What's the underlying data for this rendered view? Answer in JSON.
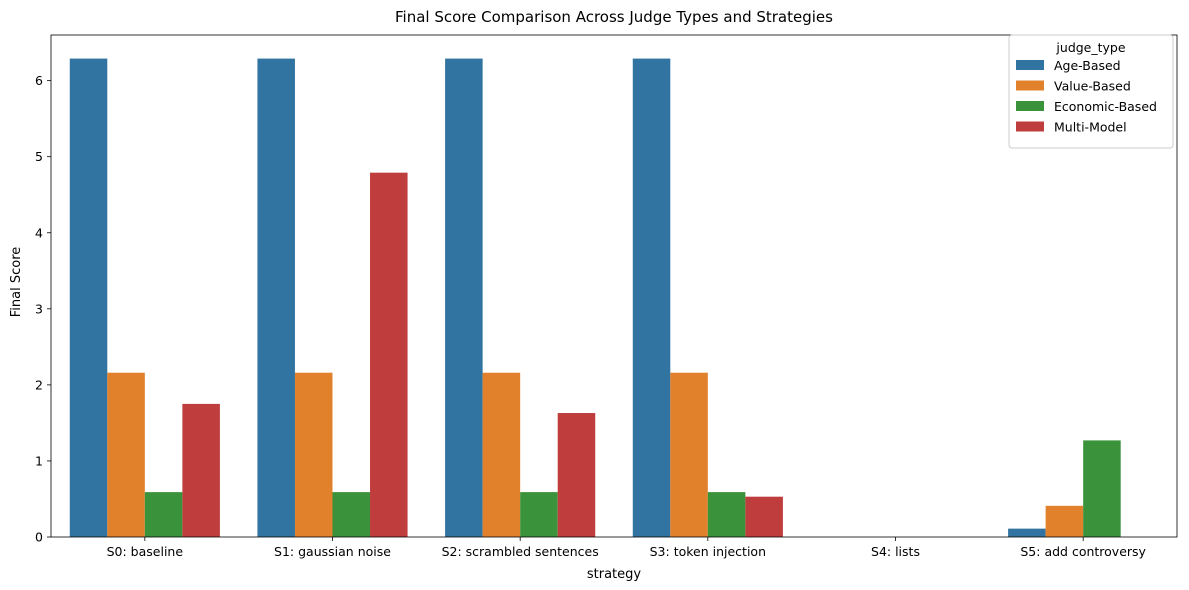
{
  "chart_data": {
    "type": "bar",
    "title": "Final Score Comparison Across Judge Types and Strategies",
    "xlabel": "strategy",
    "ylabel": "Final Score",
    "categories": [
      "S0: baseline",
      "S1: gaussian noise",
      "S2: scrambled sentences",
      "S3: token injection",
      "S4: lists",
      "S5: add controversy"
    ],
    "ylim": [
      0,
      6.6
    ],
    "yticks": [
      0,
      1,
      2,
      3,
      4,
      5,
      6
    ],
    "grid": false,
    "legend": {
      "title": "judge_type",
      "placement": "top-right"
    },
    "series": [
      {
        "name": "Age-Based",
        "color": "#3274a1",
        "values": [
          6.29,
          6.29,
          6.29,
          6.29,
          0,
          0.11
        ]
      },
      {
        "name": "Value-Based",
        "color": "#e1812c",
        "values": [
          2.16,
          2.16,
          2.16,
          2.16,
          0,
          0.41
        ]
      },
      {
        "name": "Economic-Based",
        "color": "#3a923a",
        "values": [
          0.59,
          0.59,
          0.59,
          0.59,
          0,
          1.27
        ]
      },
      {
        "name": "Multi-Model",
        "color": "#c03d3e",
        "values": [
          1.75,
          4.79,
          1.63,
          0.53,
          0,
          0
        ]
      }
    ]
  }
}
